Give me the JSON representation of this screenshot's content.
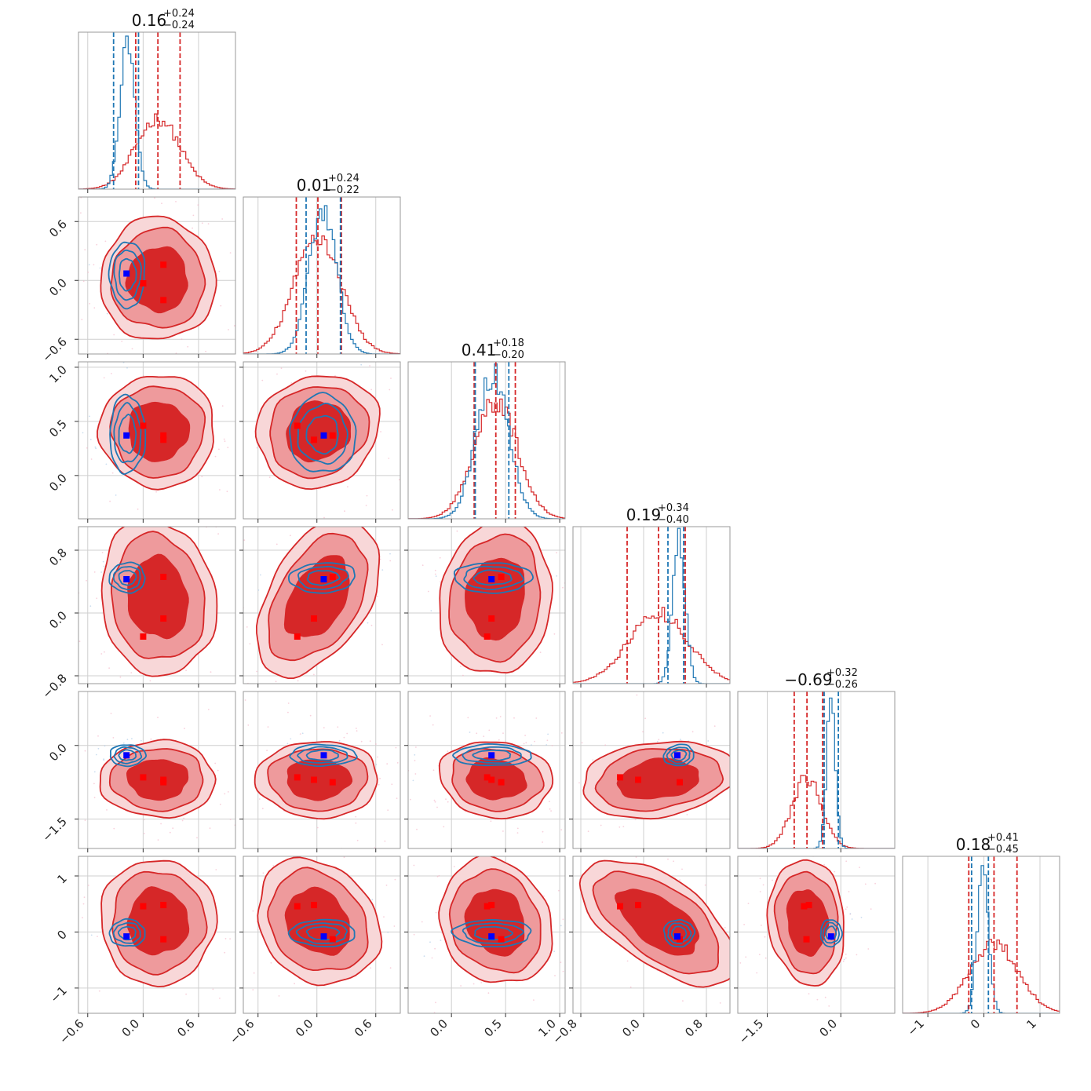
{
  "chart_data": {
    "type": "corner",
    "colors": {
      "red": "#d62728",
      "blue": "#1f77b4",
      "marker_blue": "#0000ff",
      "marker_red": "#ff0000",
      "grid": "#cfcfcf",
      "frame": "#999999"
    },
    "params": [
      {
        "title_value": "0.16",
        "title_plus": "+0.24",
        "title_minus": "−0.24",
        "range": [
          -0.7,
          1.0
        ],
        "ticks": [
          -0.6,
          0.0,
          0.6
        ],
        "tick_labels": [
          "−0.6",
          "0.0",
          "0.6"
        ],
        "red": {
          "mean": 0.16,
          "sd": 0.24,
          "quantiles": [
            -0.08,
            0.4
          ]
        },
        "blue": {
          "mean": -0.17,
          "sd": 0.08,
          "quantiles": [
            -0.32,
            -0.05
          ]
        },
        "red_markers": [
          0.0,
          0.22,
          0.22
        ],
        "blue_marker": -0.18
      },
      {
        "title_value": "0.01",
        "title_plus": "+0.24",
        "title_minus": "−0.22",
        "range": [
          -0.75,
          0.85
        ],
        "ticks": [
          -0.6,
          0.0,
          0.6
        ],
        "tick_labels": [
          "−0.6",
          "0.0",
          "0.6"
        ],
        "red": {
          "mean": 0.01,
          "sd": 0.24,
          "quantiles": [
            -0.21,
            0.25
          ]
        },
        "blue": {
          "mean": 0.06,
          "sd": 0.14,
          "quantiles": [
            -0.11,
            0.24
          ]
        },
        "red_markers": [
          -0.2,
          -0.03,
          0.16
        ],
        "blue_marker": 0.07
      },
      {
        "title_value": "0.41",
        "title_plus": "+0.18",
        "title_minus": "−0.20",
        "range": [
          -0.4,
          1.05
        ],
        "ticks": [
          0.0,
          0.5,
          1.0
        ],
        "tick_labels": [
          "0.0",
          "0.5",
          "1.0"
        ],
        "red": {
          "mean": 0.41,
          "sd": 0.2,
          "quantiles": [
            0.21,
            0.59
          ]
        },
        "blue": {
          "mean": 0.38,
          "sd": 0.15,
          "quantiles": [
            0.22,
            0.53
          ]
        },
        "red_markers": [
          0.33,
          0.37,
          0.46
        ],
        "blue_marker": 0.37
      },
      {
        "title_value": "0.19",
        "title_plus": "+0.34",
        "title_minus": "−0.40",
        "range": [
          -0.9,
          1.1
        ],
        "ticks": [
          -0.8,
          0.0,
          0.8
        ],
        "tick_labels": [
          "−0.8",
          "0.0",
          "0.8"
        ],
        "red": {
          "mean": 0.19,
          "sd": 0.38,
          "quantiles": [
            -0.21,
            0.53
          ]
        },
        "blue": {
          "mean": 0.45,
          "sd": 0.08,
          "quantiles": [
            0.31,
            0.51
          ]
        },
        "red_markers": [
          -0.3,
          -0.07,
          0.46
        ],
        "blue_marker": 0.43
      },
      {
        "title_value": "−0.69",
        "title_plus": "+0.32",
        "title_minus": "−0.26",
        "range": [
          -2.1,
          1.1
        ],
        "ticks": [
          -1.5,
          0.0
        ],
        "tick_labels": [
          "−1.5",
          "0.0"
        ],
        "red": {
          "mean": -0.69,
          "sd": 0.3,
          "quantiles": [
            -0.95,
            -0.37
          ]
        },
        "blue": {
          "mean": -0.2,
          "sd": 0.09,
          "quantiles": [
            -0.34,
            -0.05
          ]
        },
        "red_markers": [
          -0.75,
          -0.65,
          -0.7
        ],
        "blue_marker": -0.2
      },
      {
        "title_value": "0.18",
        "title_plus": "+0.41",
        "title_minus": "−0.45",
        "range": [
          -1.45,
          1.35
        ],
        "ticks": [
          -1.0,
          0.0,
          1.0
        ],
        "tick_labels": [
          "−1",
          "0",
          "1"
        ],
        "red": {
          "mean": 0.18,
          "sd": 0.43,
          "quantiles": [
            -0.27,
            0.59
          ]
        },
        "blue": {
          "mean": -0.02,
          "sd": 0.1,
          "quantiles": [
            -0.22,
            0.08
          ]
        },
        "red_markers": [
          0.48,
          -0.13,
          0.46
        ],
        "blue_marker": -0.08
      }
    ],
    "legend": ""
  }
}
